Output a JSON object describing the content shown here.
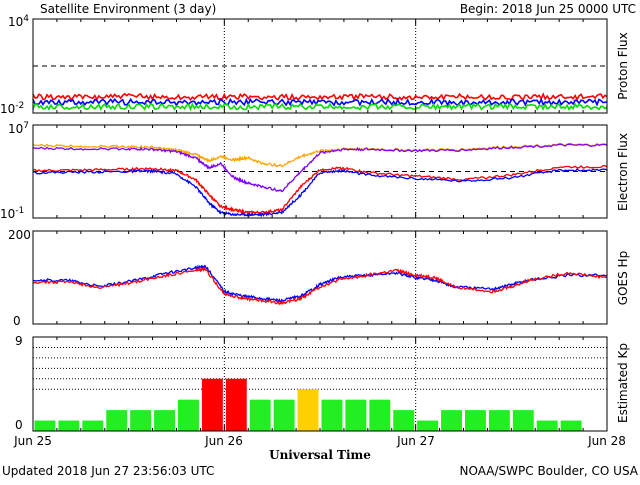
{
  "header": {
    "title": "Satellite Environment (3 day)",
    "begin": "Begin:  2018 Jun 25 0000 UTC"
  },
  "footer": {
    "updated": "Updated 2018 Jun 27 23:56:03 UTC",
    "credit": "NOAA/SWPC Boulder, CO USA"
  },
  "x_axis": {
    "label": "Universal Time",
    "ticks": [
      "Jun 25",
      "Jun 26",
      "Jun 27",
      "Jun 28"
    ]
  },
  "colors": {
    "red": "#ff0000",
    "blue": "#0000ff",
    "green": "#00dd00",
    "orange": "#ffa500",
    "purple": "#7f00ff",
    "kp_green": "#22ee22",
    "kp_red": "#ff0000",
    "kp_yellow": "#ffd000"
  },
  "chart_data": [
    {
      "type": "line",
      "ylabel": "Proton Flux",
      "yscale": "log",
      "ylim": [
        0.01,
        10000
      ],
      "ytick_labels": [
        "10^4",
        "10^-2"
      ],
      "threshold": 10,
      "x_days": [
        0,
        0.25,
        0.5,
        0.75,
        1.0,
        1.25,
        1.5,
        1.75,
        2.0,
        2.25,
        2.5,
        2.75,
        3.0
      ],
      "series": [
        {
          "color": "red",
          "values": [
            0.11,
            0.1,
            0.12,
            0.1,
            0.11,
            0.1,
            0.11,
            0.11,
            0.1,
            0.11,
            0.1,
            0.11,
            0.11
          ]
        },
        {
          "color": "blue",
          "values": [
            0.05,
            0.05,
            0.05,
            0.045,
            0.05,
            0.05,
            0.045,
            0.05,
            0.05,
            0.045,
            0.05,
            0.05,
            0.05
          ]
        },
        {
          "color": "green",
          "values": [
            0.025,
            0.025,
            0.025,
            0.025,
            0.025,
            0.025,
            0.025,
            0.025,
            0.025,
            0.025,
            0.025,
            0.025,
            0.025
          ]
        }
      ]
    },
    {
      "type": "line",
      "ylabel": "Electron Flux",
      "yscale": "log",
      "ylim": [
        0.1,
        10000000
      ],
      "ytick_labels": [
        "10^7",
        "10^-1"
      ],
      "threshold": 1000,
      "x_days": [
        0,
        0.25,
        0.5,
        0.62,
        0.75,
        0.85,
        0.92,
        0.98,
        1.05,
        1.12,
        1.2,
        1.3,
        1.4,
        1.5,
        1.62,
        1.75,
        2.0,
        2.25,
        2.5,
        2.75,
        3.0
      ],
      "series": [
        {
          "color": "orange",
          "values": [
            180000,
            150000,
            140000,
            120000,
            70000,
            30000,
            8000,
            20000,
            10000,
            15000,
            5000,
            3000,
            20000,
            60000,
            90000,
            90000,
            70000,
            80000,
            140000,
            200000,
            200000
          ]
        },
        {
          "color": "purple",
          "values": [
            100000,
            90000,
            90000,
            80000,
            50000,
            15000,
            2000,
            5000,
            300,
            100,
            50,
            20,
            1000,
            40000,
            80000,
            80000,
            60000,
            70000,
            120000,
            180000,
            180000
          ]
        },
        {
          "color": "red",
          "values": [
            1200,
            1300,
            1600,
            1800,
            1200,
            200,
            10,
            1,
            0.5,
            0.3,
            0.3,
            0.5,
            50,
            1500,
            2000,
            800,
            400,
            200,
            500,
            2500,
            2500
          ]
        },
        {
          "color": "blue",
          "values": [
            800,
            900,
            1000,
            1100,
            600,
            50,
            2,
            0.3,
            0.2,
            0.2,
            0.2,
            0.3,
            10,
            800,
            1200,
            500,
            250,
            150,
            300,
            1300,
            1300
          ]
        }
      ]
    },
    {
      "type": "line",
      "ylabel": "GOES Hp",
      "ylim": [
        0,
        200
      ],
      "ytick_labels": [
        "200",
        "0"
      ],
      "x_days": [
        0,
        0.2,
        0.35,
        0.55,
        0.7,
        0.85,
        0.9,
        1.0,
        1.1,
        1.2,
        1.3,
        1.4,
        1.5,
        1.6,
        1.75,
        1.9,
        2.0,
        2.1,
        2.2,
        2.4,
        2.5,
        2.6,
        2.8,
        3.0
      ],
      "series": [
        {
          "color": "blue",
          "values": [
            95,
            93,
            80,
            95,
            110,
            120,
            125,
            70,
            60,
            55,
            50,
            60,
            85,
            100,
            105,
            110,
            100,
            95,
            80,
            75,
            85,
            95,
            105,
            105
          ]
        },
        {
          "color": "red",
          "values": [
            90,
            90,
            78,
            92,
            105,
            115,
            118,
            65,
            55,
            50,
            45,
            55,
            80,
            95,
            105,
            115,
            105,
            100,
            80,
            70,
            80,
            95,
            110,
            100
          ]
        }
      ]
    },
    {
      "type": "bar",
      "ylabel": "Estimated Kp",
      "ylim": [
        0,
        9
      ],
      "ytick_labels": [
        "9",
        "0"
      ],
      "gridlines": [
        4,
        5,
        6,
        7,
        8
      ],
      "bin_hours": 3,
      "values": [
        1,
        1,
        1,
        2,
        2,
        2,
        3,
        5,
        5,
        3,
        3,
        4,
        3,
        3,
        3,
        2,
        1,
        2,
        2,
        2,
        2,
        1,
        1,
        0
      ],
      "bar_colors": [
        "kp_green",
        "kp_green",
        "kp_green",
        "kp_green",
        "kp_green",
        "kp_green",
        "kp_green",
        "kp_red",
        "kp_red",
        "kp_green",
        "kp_green",
        "kp_yellow",
        "kp_green",
        "kp_green",
        "kp_green",
        "kp_green",
        "kp_green",
        "kp_green",
        "kp_green",
        "kp_green",
        "kp_green",
        "kp_green",
        "kp_green",
        "kp_green"
      ]
    }
  ]
}
